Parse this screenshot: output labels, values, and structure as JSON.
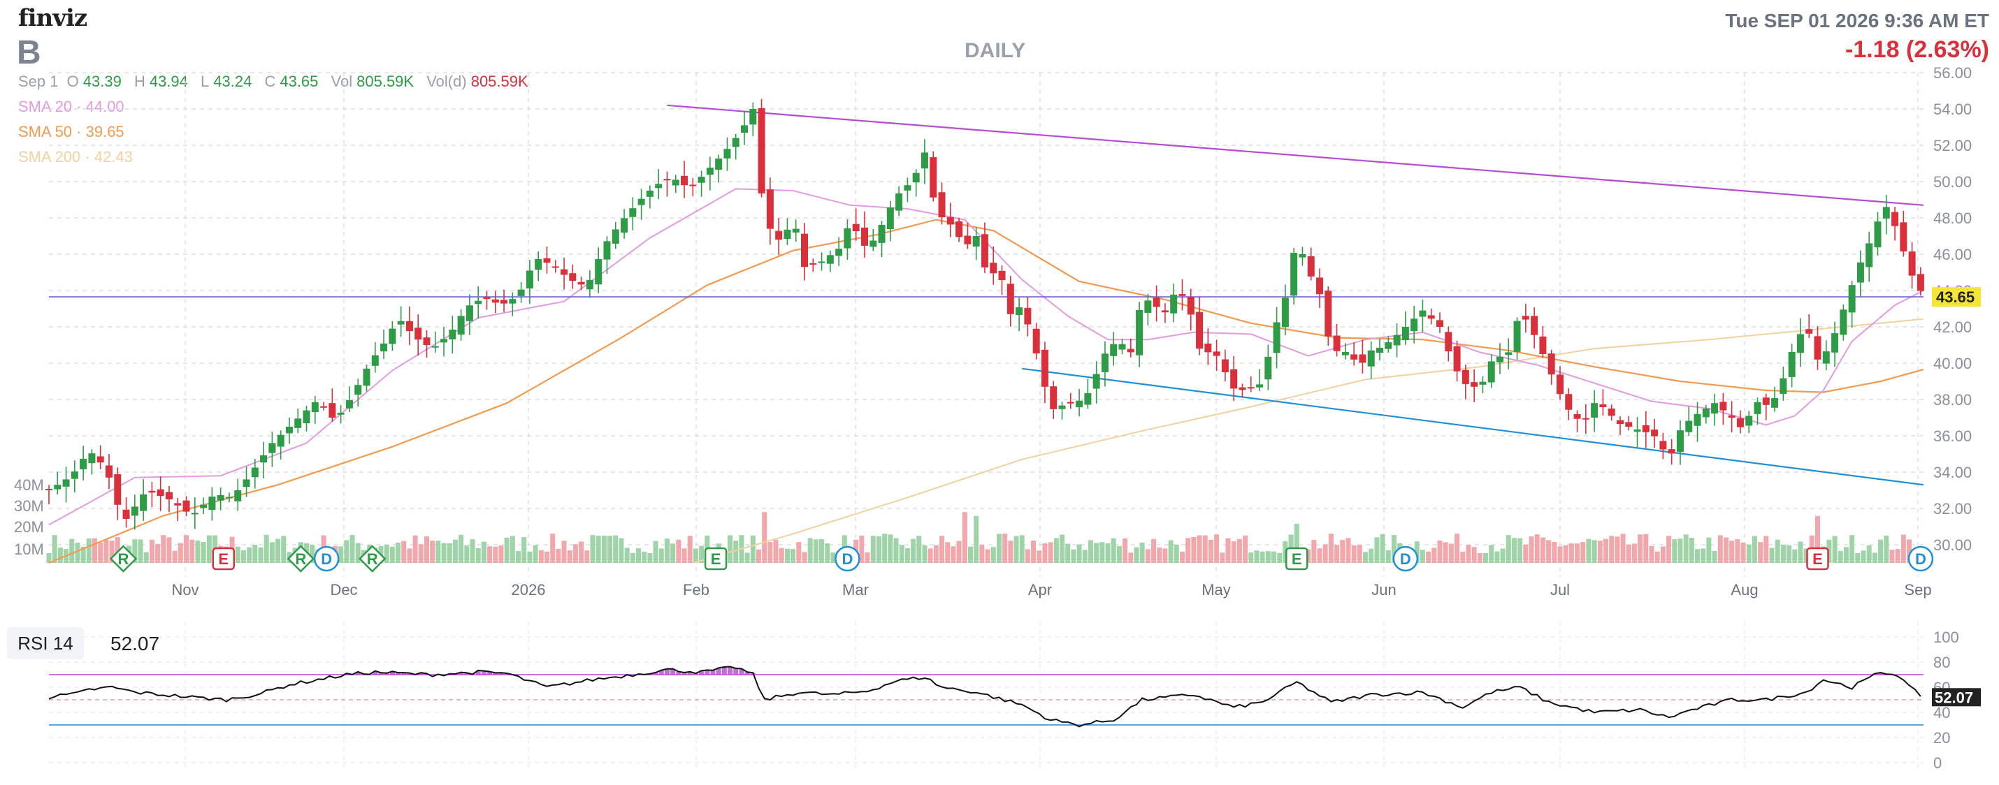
{
  "header": {
    "logo": "finviz",
    "ticker": "B",
    "timeframe": "DAILY",
    "datetime": "Tue SEP 01 2026 9:36 AM ET",
    "change": "-1.18 (2.63%)"
  },
  "ohlc": {
    "date": "Sep 1",
    "open_label": "O",
    "open": "43.39",
    "high_label": "H",
    "high": "43.94",
    "low_label": "L",
    "low": "43.24",
    "close_label": "C",
    "close": "43.65",
    "vol_label": "Vol",
    "vol": "805.59K",
    "vold_label": "Vol(d)",
    "vold": "805.59K"
  },
  "sma": {
    "sma20_label": "SMA 20",
    "sma20_value": "44.00",
    "sma50_label": "SMA 50",
    "sma50_value": "39.65",
    "sma200_label": "SMA 200",
    "sma200_value": "42.43"
  },
  "colors": {
    "up": "#2e9b47",
    "down": "#d9303b",
    "up_volume": "#9fd3a8",
    "down_volume": "#f2a7ad",
    "sma20": "#e39be0",
    "sma50": "#f39a4e",
    "sma200": "#f1d29f",
    "trend_upper": "#b54cd1",
    "trend_lower": "#1f8fd6",
    "hline": "#6b5bd6",
    "price_tag": "#f5e43a"
  },
  "chart_data": {
    "type": "candlestick",
    "x_labels": [
      "Nov",
      "Dec",
      "2026",
      "Feb",
      "Mar",
      "Apr",
      "May",
      "Jun",
      "Jul",
      "Aug",
      "Sep"
    ],
    "ylim": [
      29,
      56
    ],
    "y_ticks": [
      "56.00",
      "54.00",
      "52.00",
      "50.00",
      "48.00",
      "46.00",
      "44.00",
      "42.00",
      "40.00",
      "38.00",
      "36.00",
      "34.00",
      "32.00",
      "30.00"
    ],
    "volume_ticks": [
      "40M",
      "30M",
      "20M",
      "10M"
    ],
    "last_price": "43.65",
    "horizontal_line": 43.65,
    "close_path": [
      [
        0,
        33
      ],
      [
        8,
        33.8
      ],
      [
        14,
        35.2
      ],
      [
        20,
        34.2
      ],
      [
        26,
        31.2
      ],
      [
        34,
        33
      ],
      [
        42,
        32.5
      ],
      [
        50,
        31.6
      ],
      [
        58,
        32.8
      ],
      [
        64,
        32.6
      ],
      [
        70,
        33.8
      ],
      [
        78,
        35.6
      ],
      [
        86,
        36.8
      ],
      [
        94,
        38
      ],
      [
        100,
        36.8
      ],
      [
        106,
        38.2
      ],
      [
        112,
        40
      ],
      [
        118,
        41.3
      ],
      [
        122,
        42.5
      ],
      [
        128,
        41.4
      ],
      [
        134,
        40.8
      ],
      [
        140,
        41.6
      ],
      [
        146,
        43.1
      ],
      [
        152,
        43.6
      ],
      [
        158,
        43.2
      ],
      [
        164,
        43.7
      ],
      [
        170,
        45.8
      ],
      [
        176,
        45.4
      ],
      [
        182,
        44.6
      ],
      [
        188,
        44.2
      ],
      [
        194,
        46.5
      ],
      [
        200,
        47.8
      ],
      [
        206,
        48.9
      ],
      [
        212,
        49.8
      ],
      [
        218,
        50.2
      ],
      [
        224,
        49.6
      ],
      [
        230,
        50.6
      ],
      [
        236,
        51.6
      ],
      [
        242,
        52.8
      ],
      [
        246,
        54
      ],
      [
        250,
        47.8
      ],
      [
        256,
        46.6
      ],
      [
        260,
        48.1
      ],
      [
        264,
        45.3
      ],
      [
        270,
        45.6
      ],
      [
        276,
        46.3
      ],
      [
        280,
        47.8
      ],
      [
        286,
        46.2
      ],
      [
        290,
        47.3
      ],
      [
        296,
        49.2
      ],
      [
        302,
        50.1
      ],
      [
        306,
        51.6
      ],
      [
        310,
        48.3
      ],
      [
        316,
        47.5
      ],
      [
        320,
        46.4
      ],
      [
        324,
        47
      ],
      [
        328,
        44.7
      ],
      [
        332,
        45.2
      ],
      [
        336,
        42.7
      ],
      [
        340,
        43.2
      ],
      [
        346,
        40
      ],
      [
        350,
        37.4
      ],
      [
        356,
        37.8
      ],
      [
        362,
        38
      ],
      [
        366,
        39.4
      ],
      [
        370,
        40.9
      ],
      [
        374,
        41.2
      ],
      [
        378,
        40.6
      ],
      [
        382,
        43.7
      ],
      [
        386,
        43.2
      ],
      [
        390,
        42.8
      ],
      [
        394,
        44.1
      ],
      [
        398,
        43.3
      ],
      [
        402,
        40.8
      ],
      [
        408,
        40.4
      ],
      [
        414,
        38.6
      ],
      [
        418,
        38.5
      ],
      [
        424,
        38.9
      ],
      [
        428,
        41.8
      ],
      [
        432,
        43.6
      ],
      [
        436,
        46.9
      ],
      [
        440,
        45.1
      ],
      [
        444,
        43.8
      ],
      [
        448,
        40.7
      ],
      [
        454,
        40.6
      ],
      [
        458,
        39.8
      ],
      [
        462,
        40.7
      ],
      [
        466,
        40.9
      ],
      [
        470,
        41.4
      ],
      [
        476,
        42.3
      ],
      [
        480,
        42.9
      ],
      [
        486,
        42
      ],
      [
        490,
        40.2
      ],
      [
        494,
        38.9
      ],
      [
        500,
        38.6
      ],
      [
        504,
        40.1
      ],
      [
        510,
        40.6
      ],
      [
        514,
        42.9
      ],
      [
        518,
        41.9
      ],
      [
        522,
        40.5
      ],
      [
        526,
        39
      ],
      [
        530,
        37.6
      ],
      [
        536,
        36.6
      ],
      [
        540,
        37.8
      ],
      [
        544,
        37.5
      ],
      [
        548,
        36.7
      ],
      [
        554,
        36.4
      ],
      [
        558,
        36.2
      ],
      [
        562,
        35.9
      ],
      [
        566,
        34.6
      ],
      [
        570,
        36.3
      ],
      [
        574,
        37
      ],
      [
        578,
        37.4
      ],
      [
        582,
        37.8
      ],
      [
        588,
        37
      ],
      [
        592,
        36.3
      ],
      [
        596,
        37.9
      ],
      [
        600,
        37.7
      ],
      [
        604,
        38.2
      ],
      [
        610,
        41.1
      ],
      [
        614,
        42.1
      ],
      [
        618,
        40.2
      ],
      [
        622,
        40.8
      ],
      [
        626,
        42.5
      ],
      [
        632,
        45.2
      ],
      [
        636,
        46.6
      ],
      [
        640,
        48.2
      ],
      [
        642,
        48.6
      ],
      [
        646,
        47.2
      ],
      [
        650,
        45.1
      ],
      [
        655,
        43.7
      ]
    ],
    "sma20_path": [
      [
        0,
        31.1
      ],
      [
        30,
        33.7
      ],
      [
        60,
        33.8
      ],
      [
        90,
        35.6
      ],
      [
        120,
        39.6
      ],
      [
        150,
        42.5
      ],
      [
        180,
        43.4
      ],
      [
        210,
        46.9
      ],
      [
        240,
        49.6
      ],
      [
        260,
        49.5
      ],
      [
        280,
        48.7
      ],
      [
        300,
        48.5
      ],
      [
        320,
        47.9
      ],
      [
        340,
        44.6
      ],
      [
        356,
        42.6
      ],
      [
        370,
        41.3
      ],
      [
        384,
        41.3
      ],
      [
        400,
        41.7
      ],
      [
        420,
        41.6
      ],
      [
        440,
        40.4
      ],
      [
        460,
        41.3
      ],
      [
        480,
        41.7
      ],
      [
        500,
        40.6
      ],
      [
        520,
        39.9
      ],
      [
        540,
        38.9
      ],
      [
        560,
        37.9
      ],
      [
        580,
        37.5
      ],
      [
        600,
        36.6
      ],
      [
        610,
        37.1
      ],
      [
        620,
        38.5
      ],
      [
        630,
        41.2
      ],
      [
        645,
        43.2
      ],
      [
        655,
        44
      ]
    ],
    "sma50_path": [
      [
        0,
        29
      ],
      [
        40,
        31.6
      ],
      [
        80,
        33.3
      ],
      [
        120,
        35.4
      ],
      [
        160,
        37.8
      ],
      [
        200,
        41.4
      ],
      [
        230,
        44.3
      ],
      [
        260,
        46.2
      ],
      [
        290,
        47.1
      ],
      [
        310,
        47.9
      ],
      [
        330,
        47.3
      ],
      [
        360,
        44.5
      ],
      [
        390,
        43.5
      ],
      [
        420,
        42.2
      ],
      [
        450,
        41.4
      ],
      [
        480,
        41.3
      ],
      [
        510,
        40.7
      ],
      [
        540,
        39.8
      ],
      [
        570,
        39
      ],
      [
        600,
        38.5
      ],
      [
        620,
        38.4
      ],
      [
        640,
        39
      ],
      [
        655,
        39.65
      ]
    ],
    "sma200_path": [
      [
        225,
        29
      ],
      [
        260,
        30.6
      ],
      [
        300,
        32.6
      ],
      [
        340,
        34.7
      ],
      [
        380,
        36.2
      ],
      [
        420,
        37.6
      ],
      [
        460,
        39.1
      ],
      [
        500,
        39.8
      ],
      [
        540,
        40.8
      ],
      [
        580,
        41.3
      ],
      [
        620,
        41.9
      ],
      [
        655,
        42.43
      ]
    ],
    "trendline_upper": [
      [
        216,
        54.2
      ],
      [
        655,
        48.7
      ]
    ],
    "trendline_lower": [
      [
        340,
        39.7
      ],
      [
        655,
        33.3
      ]
    ],
    "events": [
      {
        "label": "R",
        "type": "diamond",
        "x": 26
      },
      {
        "label": "E",
        "type": "square",
        "x": 61
      },
      {
        "label": "R",
        "type": "diamond",
        "x": 88
      },
      {
        "label": "D",
        "type": "circle",
        "x": 97
      },
      {
        "label": "R",
        "type": "diamond",
        "x": 113
      },
      {
        "label": "E",
        "type": "square",
        "x": 233
      },
      {
        "label": "D",
        "type": "circle",
        "x": 279
      },
      {
        "label": "E",
        "type": "square",
        "x": 436
      },
      {
        "label": "D",
        "type": "circle",
        "x": 474
      },
      {
        "label": "E",
        "type": "square",
        "x": 618
      },
      {
        "label": "D",
        "type": "circle",
        "x": 654
      }
    ],
    "volume_spikes": [
      [
        105,
        26
      ],
      [
        235,
        24
      ],
      [
        250,
        26
      ],
      [
        320,
        26
      ],
      [
        324,
        24
      ],
      [
        436,
        20
      ],
      [
        618,
        24
      ]
    ]
  },
  "rsi": {
    "label": "RSI 14",
    "value": "52.07",
    "ticks": [
      "100",
      "80",
      "60",
      "40",
      "20",
      "0"
    ],
    "overbought": 70,
    "oversold": 30,
    "path": [
      [
        0,
        52
      ],
      [
        10,
        55
      ],
      [
        14,
        58
      ],
      [
        22,
        60
      ],
      [
        30,
        56
      ],
      [
        40,
        54
      ],
      [
        50,
        52
      ],
      [
        62,
        50
      ],
      [
        74,
        55
      ],
      [
        84,
        62
      ],
      [
        94,
        66
      ],
      [
        104,
        70
      ],
      [
        114,
        72
      ],
      [
        124,
        71
      ],
      [
        134,
        70
      ],
      [
        150,
        72
      ],
      [
        160,
        71
      ],
      [
        174,
        60
      ],
      [
        190,
        66
      ],
      [
        204,
        70
      ],
      [
        216,
        74
      ],
      [
        228,
        72
      ],
      [
        240,
        76
      ],
      [
        246,
        70
      ],
      [
        250,
        50
      ],
      [
        262,
        56
      ],
      [
        274,
        54
      ],
      [
        286,
        57
      ],
      [
        296,
        65
      ],
      [
        306,
        68
      ],
      [
        312,
        60
      ],
      [
        324,
        56
      ],
      [
        340,
        46
      ],
      [
        350,
        34
      ],
      [
        360,
        30
      ],
      [
        372,
        34
      ],
      [
        382,
        50
      ],
      [
        400,
        54
      ],
      [
        414,
        44
      ],
      [
        424,
        48
      ],
      [
        436,
        64
      ],
      [
        448,
        48
      ],
      [
        462,
        54
      ],
      [
        480,
        56
      ],
      [
        494,
        44
      ],
      [
        504,
        56
      ],
      [
        514,
        60
      ],
      [
        524,
        48
      ],
      [
        540,
        40
      ],
      [
        556,
        42
      ],
      [
        566,
        36
      ],
      [
        574,
        42
      ],
      [
        588,
        50
      ],
      [
        600,
        50
      ],
      [
        614,
        56
      ],
      [
        620,
        66
      ],
      [
        630,
        60
      ],
      [
        640,
        72
      ],
      [
        646,
        70
      ],
      [
        650,
        60
      ],
      [
        655,
        52.07
      ]
    ]
  }
}
